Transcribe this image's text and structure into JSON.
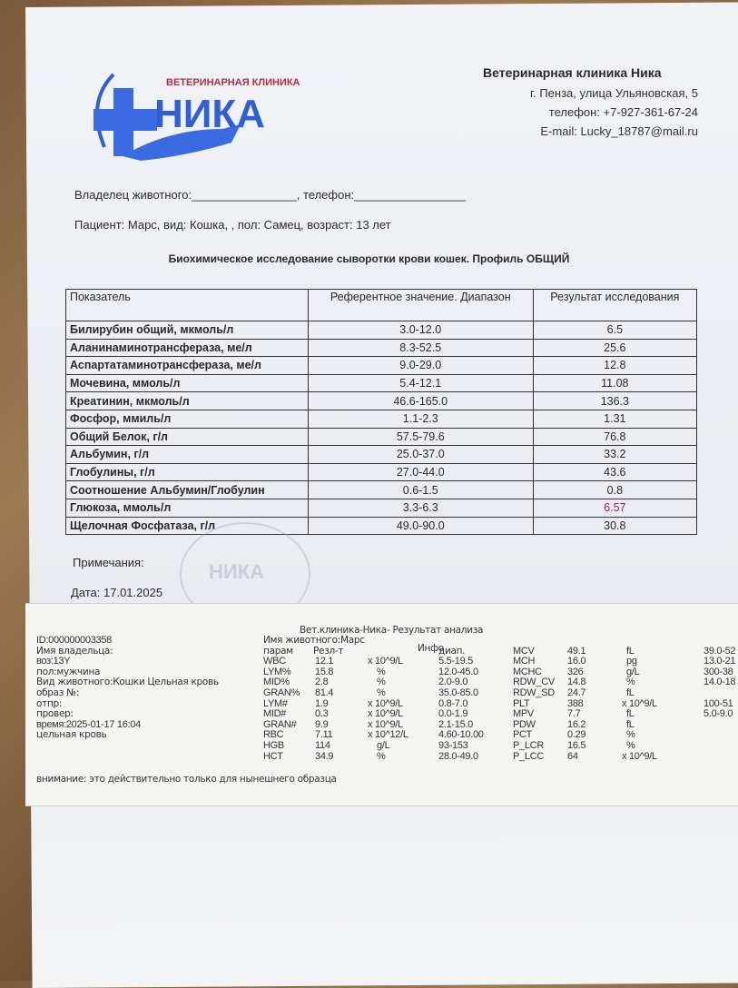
{
  "logo": {
    "subtitle": "ВЕТЕРИНАРНАЯ КЛИНИКА",
    "name": "НИКА",
    "colors": {
      "blue": "#2f5fd0",
      "red": "#b0304a"
    }
  },
  "clinic": {
    "name": "Ветеринарная клиника Ника",
    "address": "г. Пенза, улица Ульяновская, 5",
    "phone": "телефон: +7-927-361-67-24",
    "email": "E-mail: Lucky_18787@mail.ru"
  },
  "owner_line": "Владелец  животного:________________, телефон:_________________",
  "patient_line": "Пациент: Марс,  вид: Кошка,  , пол: Самец,  возраст: 13 лет",
  "title": "Биохимическое исследование сыворотки крови кошек. Профиль ОБЩИЙ",
  "table": {
    "headers": [
      "Показатель",
      "Референтное значение. Диапазон",
      "Результат исследования"
    ],
    "rows": [
      [
        "Билирубин общий,  мкмоль/л",
        "3.0-12.0",
        "6.5"
      ],
      [
        "Аланинаминотрансфераза, ме/л",
        "8.3-52.5",
        "25.6"
      ],
      [
        "Аспартатаминотрансфераза, ме/л",
        "9.0-29.0",
        "12.8"
      ],
      [
        "Мочевина, ммоль/л",
        "5.4-12.1",
        "11.08"
      ],
      [
        "Креатинин, мкмоль/л",
        "46.6-165.0",
        "136.3"
      ],
      [
        "Фосфор, ммиль/л",
        "1.1-2.3",
        "1.31"
      ],
      [
        "Общий Белок, г/л",
        "57.5-79.6",
        "76.8"
      ],
      [
        "Альбумин, г/л",
        "25.0-37.0",
        "33.2"
      ],
      [
        "Глобулины, г/л",
        "27.0-44.0",
        "43.6"
      ],
      [
        "Соотношение Альбумин/Глобулин",
        "0.6-1.5",
        "0.8"
      ],
      [
        "Глюкоза, ммоль/л",
        "3.3-6.3",
        "6.57"
      ],
      [
        "Щелочная Фосфатаза, г/л",
        "49.0-90.0",
        "30.8"
      ]
    ],
    "highlight_color": "#8a2a55"
  },
  "notes_label": "Примечания:",
  "date": "Дата:  17.01.2025",
  "stamp_text": "НИКА",
  "printout": {
    "header": "Вет.клиника-Ника- Результат анализа",
    "left": [
      "ID:000000003358",
      "Имя владельца:",
      "воз:13Y",
      "пол:мужчина",
      "Вид животного:Кошки Цельная кровь",
      "образ №:",
      "отпр:",
      "провер:",
      "время:2025-01-17  16:04",
      "цельная кровь"
    ],
    "animal": "Имя животного:Марс",
    "col_headers": {
      "param": "парам",
      "result": "Резл-т",
      "info": "Инфо",
      "range": "диап."
    },
    "rows1": [
      [
        "WBC",
        "12.1",
        "x 10^9/L",
        "5.5-19.5"
      ],
      [
        "LYM%",
        "15.8",
        "%",
        "12.0-45.0"
      ],
      [
        "MID%",
        "2.8",
        "%",
        "2.0-9.0"
      ],
      [
        "GRAN%",
        "81.4",
        "%",
        "35.0-85.0"
      ],
      [
        "LYM#",
        "1.9",
        "x 10^9/L",
        "0.8-7.0"
      ],
      [
        "MID#",
        "0.3",
        "x 10^9/L",
        "0.0-1.9"
      ],
      [
        "GRAN#",
        "9.9",
        "x 10^9/L",
        "2.1-15.0"
      ],
      [
        "RBC",
        "7.11",
        "x 10^12/L",
        "4.60-10.00"
      ],
      [
        "HGB",
        "114",
        "g/L",
        "93-153"
      ],
      [
        "HCT",
        "34.9",
        "%",
        "28.0-49.0"
      ]
    ],
    "rows2": [
      [
        "MCV",
        "49.1",
        "fL",
        "39.0-52"
      ],
      [
        "MCH",
        "16.0",
        "pg",
        "13.0-21"
      ],
      [
        "MCHC",
        "326",
        "g/L",
        "300-38"
      ],
      [
        "RDW_CV",
        "14.8",
        "%",
        "14.0-18"
      ],
      [
        "RDW_SD",
        "24.7",
        "fL",
        ""
      ],
      [
        "PLT",
        "388",
        "x 10^9/L",
        "100-51"
      ],
      [
        "MPV",
        "7.7",
        "fL",
        "5.0-9.0"
      ],
      [
        "PDW",
        "16.2",
        "fL",
        ""
      ],
      [
        "PCT",
        "0.29",
        "%",
        ""
      ],
      [
        "P_LCR",
        "16.5",
        "%",
        ""
      ],
      [
        "P_LCC",
        "64",
        "x 10^9/L",
        ""
      ]
    ],
    "footer": "внимание: это действительно только для нынешнего образца"
  }
}
